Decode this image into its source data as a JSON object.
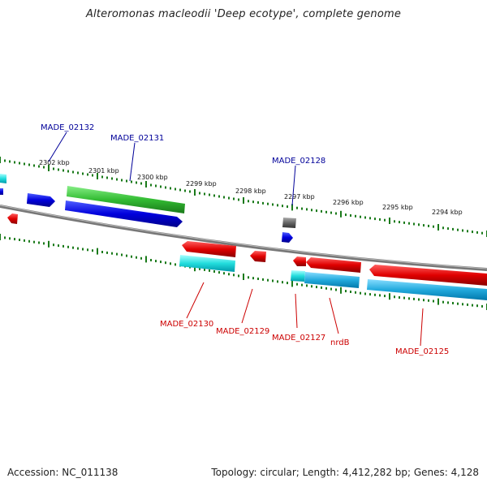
{
  "title": "Alteromonas macleodii 'Deep ecotype', complete genome",
  "footer": {
    "accession": "Accession: NC_011138",
    "summary": "Topology: circular; Length: 4,412,282 bp; Genes: 4,128"
  },
  "scale_labels": [
    "2302 kbp",
    "2301 kbp",
    "2300 kbp",
    "2299 kbp",
    "2298 kbp",
    "2297 kbp",
    "2296 kbp",
    "2295 kbp",
    "2294 kbp"
  ],
  "gene_labels_forward": [
    "MADE_02132",
    "MADE_02131",
    "MADE_02128"
  ],
  "gene_labels_reverse": [
    "MADE_02130",
    "MADE_02129",
    "MADE_02127",
    "nrdB",
    "MADE_02125"
  ],
  "colors": {
    "forward_cds": "#0000dd",
    "reverse_cds": "#e00000",
    "rna": "#33bb33",
    "reverse_cog": "#22ccee",
    "other": "#666666",
    "backbone": "#808080",
    "tick": "#1a7a1a",
    "forward_label": "#000099",
    "reverse_label": "#cc0000"
  }
}
